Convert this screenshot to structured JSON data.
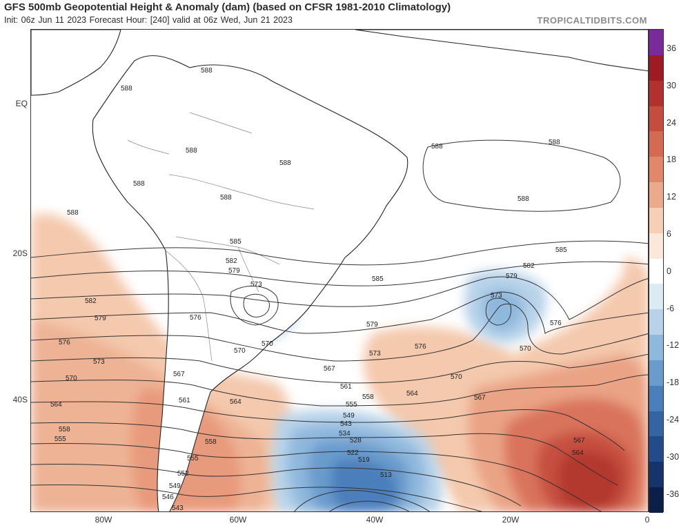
{
  "header": {
    "title": "GFS 500mb Geopotential Height & Anomaly (dam) (based on CFSR 1981-2010 Climatology)",
    "subtitle": "Init: 06z Jun 11 2023   Forecast Hour: [240]   valid at 06z Wed, Jun 21 2023",
    "credit": "TROPICALTIDBITS.COM"
  },
  "axes": {
    "lat_labels": [
      "EQ",
      "20S",
      "40S"
    ],
    "lon_labels": [
      "80W",
      "60W",
      "40W",
      "20W",
      "0"
    ]
  },
  "colorbar": {
    "labels": [
      "36",
      "30",
      "24",
      "18",
      "12",
      "6",
      "0",
      "-6",
      "-12",
      "-18",
      "-24",
      "-30",
      "-36"
    ],
    "colors": [
      "#7b2a9b",
      "#9e1b23",
      "#b2312f",
      "#c44d40",
      "#d56a52",
      "#e3876a",
      "#ecaa8c",
      "#f6cfb6",
      "#fbe8db",
      "#ffffff",
      "#dceaf4",
      "#b8d3e9",
      "#8fb8dd",
      "#6a9bcd",
      "#4b7fbb",
      "#3564a4",
      "#234a8a",
      "#16336b",
      "#0c1f4a"
    ]
  },
  "map": {
    "height_labels": [
      "588",
      "588",
      "588",
      "588",
      "588",
      "588",
      "588",
      "588",
      "588",
      "588",
      "585",
      "585",
      "585",
      "582",
      "582",
      "582",
      "579",
      "579",
      "579",
      "579",
      "576",
      "576",
      "576",
      "576",
      "573",
      "573",
      "573",
      "573",
      "570",
      "570",
      "570",
      "570",
      "570",
      "567",
      "567",
      "567",
      "567",
      "564",
      "564",
      "564",
      "564",
      "561",
      "561",
      "558",
      "558",
      "558",
      "555",
      "555",
      "555",
      "552",
      "549",
      "549",
      "546",
      "543",
      "543",
      "534",
      "528",
      "522",
      "519",
      "513"
    ]
  }
}
